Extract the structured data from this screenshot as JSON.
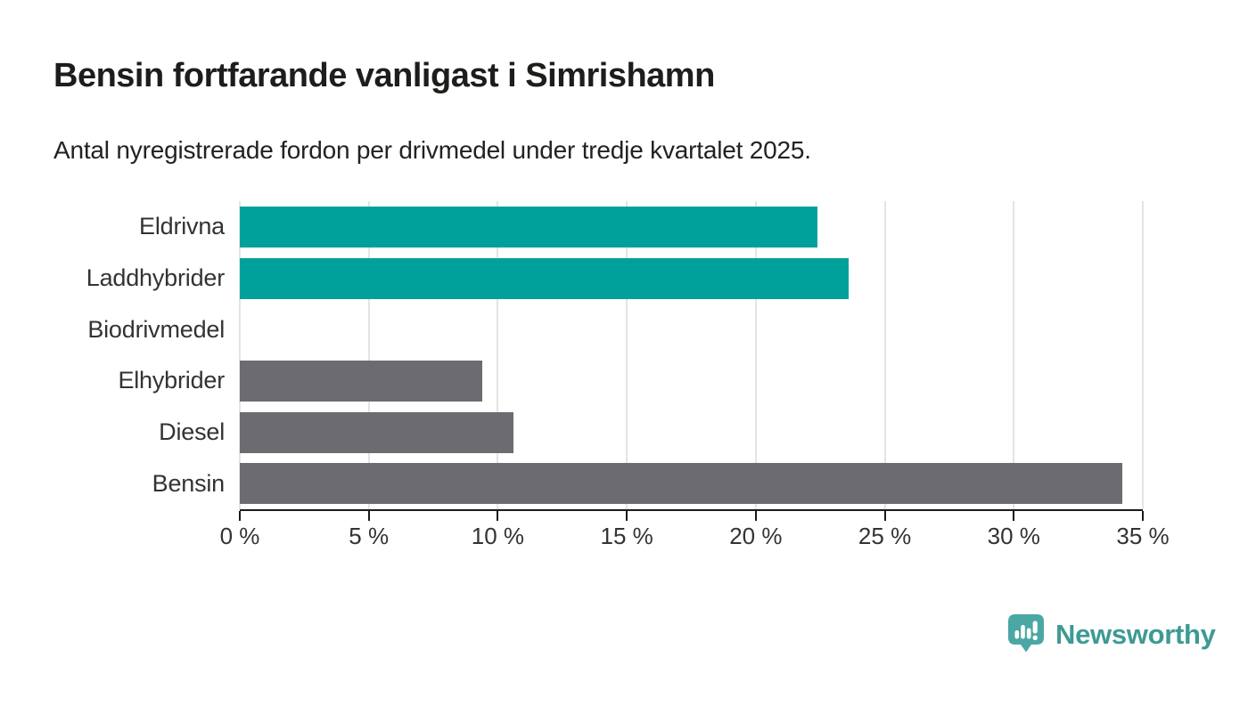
{
  "header": {
    "title": "Bensin fortfarande vanligast i Simrishamn",
    "subtitle": "Antal nyregistrerade fordon per drivmedel under tredje kvartalet 2025."
  },
  "chart_data": {
    "type": "bar",
    "orientation": "horizontal",
    "title": "Bensin fortfarande vanligast i Simrishamn",
    "subtitle": "Antal nyregistrerade fordon per drivmedel under tredje kvartalet 2025.",
    "categories": [
      "Eldrivna",
      "Laddhybrider",
      "Biodrivmedel",
      "Elhybrider",
      "Diesel",
      "Bensin"
    ],
    "values": [
      22.4,
      23.6,
      0,
      9.4,
      10.6,
      34.2
    ],
    "unit": "%",
    "xlim": [
      0,
      35
    ],
    "x_ticks": [
      0,
      5,
      10,
      15,
      20,
      25,
      30,
      35
    ],
    "x_tick_labels": [
      "0 %",
      "5 %",
      "10 %",
      "15 %",
      "20 %",
      "25 %",
      "30 %",
      "35 %"
    ],
    "grid": "vertical",
    "bar_colors": [
      "#00a19a",
      "#00a19a",
      "#6c6c70",
      "#6c6c70",
      "#6c6c70",
      "#6c6c70"
    ],
    "accent_teal": "#00a19a",
    "neutral_gray": "#6c6c70",
    "gridline_color": "#e4e4e4",
    "axis_color": "#1a1a1a"
  },
  "branding": {
    "logo_text": "Newsworthy",
    "logo_text_color": "#3d9a94",
    "logo_icon": "newsworthy-bubble-chart-icon",
    "logo_icon_color": "#4ba7a3"
  }
}
